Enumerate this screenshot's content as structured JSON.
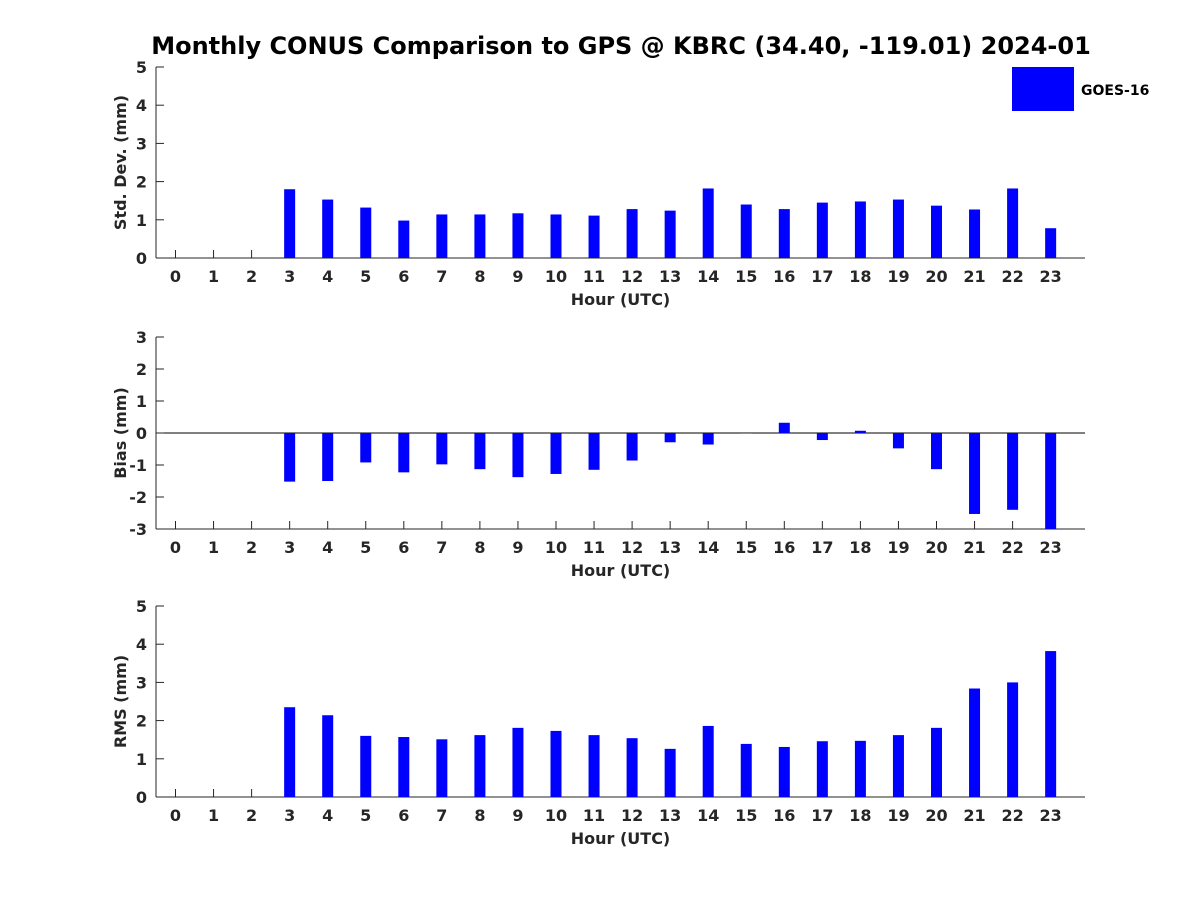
{
  "title": "Monthly CONUS Comparison to GPS @ KBRC (34.40, -119.01) 2024-01",
  "legend": {
    "label": "GOES-16",
    "color": "#0000ff",
    "position": "top-right"
  },
  "chart_data": [
    {
      "type": "bar",
      "xlabel": "Hour (UTC)",
      "ylabel": "Std. Dev. (mm)",
      "ylim": [
        0,
        5
      ],
      "yticks": [
        0,
        1,
        2,
        3,
        4,
        5
      ],
      "categories": [
        "0",
        "1",
        "2",
        "3",
        "4",
        "5",
        "6",
        "7",
        "8",
        "9",
        "10",
        "11",
        "12",
        "13",
        "14",
        "15",
        "16",
        "17",
        "18",
        "19",
        "20",
        "21",
        "22",
        "23"
      ],
      "series": [
        {
          "name": "GOES-16",
          "color": "#0000ff",
          "values": [
            null,
            null,
            null,
            1.8,
            1.53,
            1.32,
            0.98,
            1.14,
            1.14,
            1.17,
            1.14,
            1.11,
            1.28,
            1.24,
            1.82,
            1.4,
            1.28,
            1.45,
            1.48,
            1.53,
            1.37,
            1.27,
            1.82,
            0.78
          ]
        }
      ]
    },
    {
      "type": "bar",
      "xlabel": "Hour (UTC)",
      "ylabel": "Bias (mm)",
      "ylim": [
        -3,
        3
      ],
      "yticks": [
        -3,
        -2,
        -1,
        0,
        1,
        2,
        3
      ],
      "categories": [
        "0",
        "1",
        "2",
        "3",
        "4",
        "5",
        "6",
        "7",
        "8",
        "9",
        "10",
        "11",
        "12",
        "13",
        "14",
        "15",
        "16",
        "17",
        "18",
        "19",
        "20",
        "21",
        "22",
        "23"
      ],
      "series": [
        {
          "name": "GOES-16",
          "color": "#0000ff",
          "values": [
            null,
            null,
            null,
            -1.52,
            -1.5,
            -0.92,
            -1.23,
            -0.98,
            -1.13,
            -1.38,
            -1.28,
            -1.15,
            -0.86,
            -0.29,
            -0.36,
            0.0,
            0.32,
            -0.22,
            0.07,
            -0.48,
            -1.13,
            -2.53,
            -2.4,
            -3.0
          ]
        }
      ]
    },
    {
      "type": "bar",
      "xlabel": "Hour (UTC)",
      "ylabel": "RMS (mm)",
      "ylim": [
        0,
        5
      ],
      "yticks": [
        0,
        1,
        2,
        3,
        4,
        5
      ],
      "categories": [
        "0",
        "1",
        "2",
        "3",
        "4",
        "5",
        "6",
        "7",
        "8",
        "9",
        "10",
        "11",
        "12",
        "13",
        "14",
        "15",
        "16",
        "17",
        "18",
        "19",
        "20",
        "21",
        "22",
        "23"
      ],
      "series": [
        {
          "name": "GOES-16",
          "color": "#0000ff",
          "values": [
            null,
            null,
            null,
            2.35,
            2.14,
            1.6,
            1.57,
            1.51,
            1.62,
            1.81,
            1.73,
            1.62,
            1.54,
            1.26,
            1.86,
            1.39,
            1.31,
            1.46,
            1.47,
            1.62,
            1.81,
            2.84,
            3.0,
            3.82
          ]
        }
      ]
    }
  ]
}
